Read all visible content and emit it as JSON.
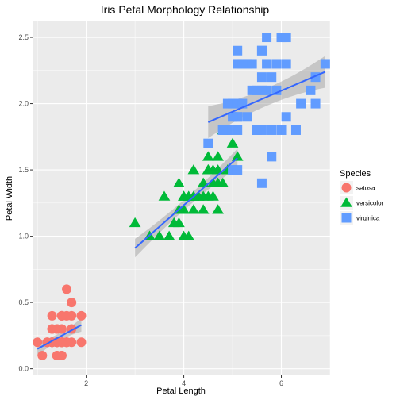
{
  "chart_data": {
    "type": "scatter",
    "title": "Iris Petal Morphology Relationship",
    "xlabel": "Petal Length",
    "ylabel": "Petal Width",
    "xlim": [
      0.9,
      7.0
    ],
    "ylim": [
      -0.05,
      2.62
    ],
    "x_ticks": [
      2,
      4,
      6
    ],
    "y_ticks": [
      0.0,
      0.5,
      1.0,
      1.5,
      2.0,
      2.5
    ],
    "x_tick_labels": [
      "2",
      "4",
      "6"
    ],
    "y_tick_labels": [
      "0.0",
      "0.5",
      "1.0",
      "1.5",
      "2.0",
      "2.5"
    ],
    "grid": true,
    "legend": {
      "title": "Species",
      "position": "right",
      "entries": [
        "setosa",
        "versicolor",
        "virginica"
      ]
    },
    "colors": {
      "setosa": "#F8766D",
      "versicolor": "#00BA38",
      "virginica": "#619CFF",
      "trend": "#3366FF",
      "ribbon": "#999999",
      "panel": "#EBEBEB"
    },
    "shapes": {
      "setosa": "circle",
      "versicolor": "triangle",
      "virginica": "square"
    },
    "series": [
      {
        "name": "setosa",
        "points": [
          [
            1.4,
            0.2
          ],
          [
            1.4,
            0.2
          ],
          [
            1.3,
            0.2
          ],
          [
            1.5,
            0.2
          ],
          [
            1.4,
            0.2
          ],
          [
            1.7,
            0.4
          ],
          [
            1.4,
            0.3
          ],
          [
            1.5,
            0.2
          ],
          [
            1.4,
            0.2
          ],
          [
            1.5,
            0.1
          ],
          [
            1.5,
            0.2
          ],
          [
            1.6,
            0.2
          ],
          [
            1.4,
            0.1
          ],
          [
            1.1,
            0.1
          ],
          [
            1.2,
            0.2
          ],
          [
            1.5,
            0.4
          ],
          [
            1.3,
            0.4
          ],
          [
            1.4,
            0.3
          ],
          [
            1.7,
            0.3
          ],
          [
            1.5,
            0.3
          ],
          [
            1.7,
            0.2
          ],
          [
            1.5,
            0.4
          ],
          [
            1.0,
            0.2
          ],
          [
            1.7,
            0.5
          ],
          [
            1.9,
            0.2
          ],
          [
            1.6,
            0.2
          ],
          [
            1.6,
            0.4
          ],
          [
            1.5,
            0.2
          ],
          [
            1.4,
            0.2
          ],
          [
            1.6,
            0.2
          ],
          [
            1.6,
            0.2
          ],
          [
            1.5,
            0.4
          ],
          [
            1.5,
            0.1
          ],
          [
            1.4,
            0.2
          ],
          [
            1.5,
            0.2
          ],
          [
            1.2,
            0.2
          ],
          [
            1.3,
            0.2
          ],
          [
            1.4,
            0.1
          ],
          [
            1.3,
            0.2
          ],
          [
            1.5,
            0.2
          ],
          [
            1.3,
            0.3
          ],
          [
            1.3,
            0.3
          ],
          [
            1.3,
            0.2
          ],
          [
            1.6,
            0.6
          ],
          [
            1.9,
            0.4
          ],
          [
            1.4,
            0.3
          ],
          [
            1.6,
            0.2
          ],
          [
            1.4,
            0.2
          ],
          [
            1.5,
            0.2
          ],
          [
            1.4,
            0.2
          ]
        ],
        "trend": {
          "x": [
            1.0,
            1.9
          ],
          "y": [
            0.15,
            0.33
          ],
          "band": 0.05
        }
      },
      {
        "name": "versicolor",
        "points": [
          [
            4.7,
            1.4
          ],
          [
            4.5,
            1.5
          ],
          [
            4.9,
            1.5
          ],
          [
            4.0,
            1.3
          ],
          [
            4.6,
            1.5
          ],
          [
            4.5,
            1.3
          ],
          [
            4.7,
            1.6
          ],
          [
            3.3,
            1.0
          ],
          [
            4.6,
            1.3
          ],
          [
            3.9,
            1.4
          ],
          [
            3.5,
            1.0
          ],
          [
            4.2,
            1.5
          ],
          [
            4.0,
            1.0
          ],
          [
            4.7,
            1.4
          ],
          [
            3.6,
            1.3
          ],
          [
            4.4,
            1.4
          ],
          [
            4.5,
            1.5
          ],
          [
            4.1,
            1.0
          ],
          [
            4.5,
            1.5
          ],
          [
            3.9,
            1.1
          ],
          [
            4.8,
            1.8
          ],
          [
            4.0,
            1.3
          ],
          [
            4.9,
            1.5
          ],
          [
            4.7,
            1.2
          ],
          [
            4.3,
            1.3
          ],
          [
            4.4,
            1.4
          ],
          [
            4.8,
            1.4
          ],
          [
            5.0,
            1.7
          ],
          [
            4.5,
            1.5
          ],
          [
            3.5,
            1.0
          ],
          [
            3.8,
            1.1
          ],
          [
            3.7,
            1.0
          ],
          [
            3.9,
            1.2
          ],
          [
            5.1,
            1.6
          ],
          [
            4.5,
            1.5
          ],
          [
            4.5,
            1.6
          ],
          [
            4.7,
            1.5
          ],
          [
            4.4,
            1.3
          ],
          [
            4.1,
            1.3
          ],
          [
            4.0,
            1.3
          ],
          [
            4.4,
            1.2
          ],
          [
            4.6,
            1.4
          ],
          [
            4.0,
            1.2
          ],
          [
            3.3,
            1.0
          ],
          [
            4.2,
            1.3
          ],
          [
            4.2,
            1.2
          ],
          [
            4.2,
            1.3
          ],
          [
            4.3,
            1.3
          ],
          [
            3.0,
            1.1
          ],
          [
            4.1,
            1.3
          ]
        ],
        "trend": {
          "x": [
            3.0,
            5.1
          ],
          "y": [
            0.91,
            1.59
          ],
          "band": 0.07
        }
      },
      {
        "name": "virginica",
        "points": [
          [
            6.0,
            2.5
          ],
          [
            5.1,
            1.9
          ],
          [
            5.9,
            2.1
          ],
          [
            5.6,
            1.8
          ],
          [
            5.8,
            2.2
          ],
          [
            6.6,
            2.1
          ],
          [
            4.5,
            1.7
          ],
          [
            6.3,
            1.8
          ],
          [
            5.8,
            1.8
          ],
          [
            6.1,
            2.5
          ],
          [
            5.1,
            2.0
          ],
          [
            5.3,
            1.9
          ],
          [
            5.5,
            2.1
          ],
          [
            5.0,
            2.0
          ],
          [
            5.1,
            2.4
          ],
          [
            5.3,
            2.3
          ],
          [
            5.5,
            1.8
          ],
          [
            6.7,
            2.2
          ],
          [
            6.9,
            2.3
          ],
          [
            5.0,
            1.5
          ],
          [
            5.7,
            2.3
          ],
          [
            4.9,
            2.0
          ],
          [
            6.7,
            2.0
          ],
          [
            4.9,
            1.8
          ],
          [
            5.7,
            2.1
          ],
          [
            6.0,
            1.8
          ],
          [
            4.8,
            1.8
          ],
          [
            4.9,
            1.8
          ],
          [
            5.6,
            2.1
          ],
          [
            5.8,
            1.6
          ],
          [
            6.1,
            1.9
          ],
          [
            6.4,
            2.0
          ],
          [
            5.6,
            2.2
          ],
          [
            5.1,
            1.5
          ],
          [
            5.6,
            1.4
          ],
          [
            6.1,
            2.3
          ],
          [
            5.6,
            2.4
          ],
          [
            5.5,
            1.8
          ],
          [
            4.8,
            1.8
          ],
          [
            5.4,
            2.1
          ],
          [
            5.6,
            2.4
          ],
          [
            5.1,
            2.3
          ],
          [
            5.1,
            1.9
          ],
          [
            5.9,
            2.3
          ],
          [
            5.7,
            2.5
          ],
          [
            5.2,
            2.3
          ],
          [
            5.0,
            1.9
          ],
          [
            5.2,
            2.0
          ],
          [
            5.4,
            2.3
          ],
          [
            5.1,
            1.8
          ]
        ],
        "trend": {
          "x": [
            4.5,
            6.9
          ],
          "y": [
            1.86,
            2.24
          ],
          "band": 0.12
        }
      }
    ]
  }
}
